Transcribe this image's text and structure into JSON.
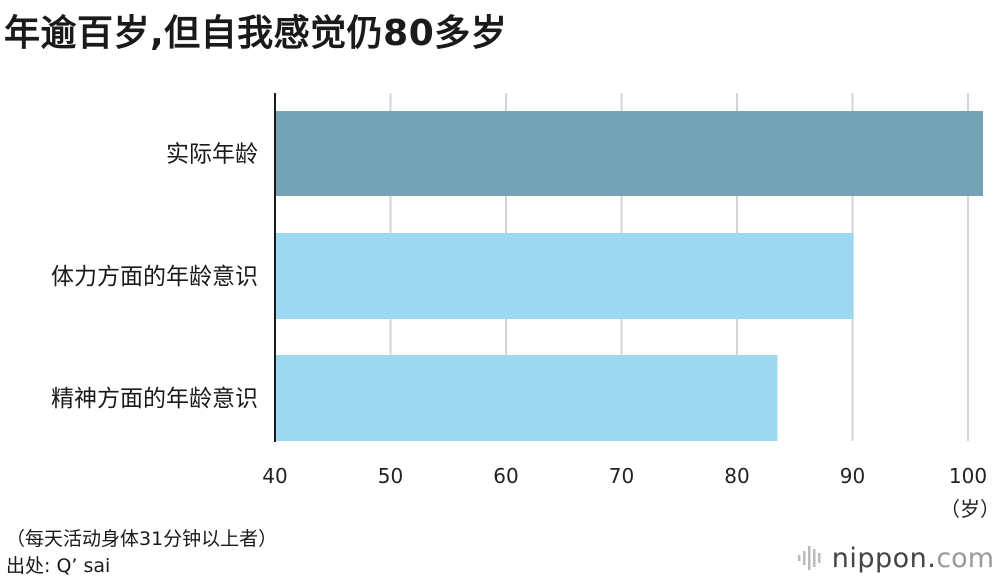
{
  "title": "年逾百岁,但自我感觉仍80多岁",
  "chart_data": {
    "type": "bar",
    "orientation": "horizontal",
    "categories": [
      "实际年龄",
      "体力方面的年龄意识",
      "精神方面的年龄意识"
    ],
    "values": [
      101.3,
      90.1,
      83.5
    ],
    "colors": [
      "#74a3b5",
      "#9cd9f0",
      "#9cd9f0"
    ],
    "xlim": [
      40,
      102
    ],
    "xticks": [
      "40",
      "50",
      "60",
      "70",
      "80",
      "90",
      "100"
    ],
    "xunit": "（岁）",
    "grid": true
  },
  "footnote": "（每天活动身体31分钟以上者）",
  "source": "出处: Q’ sai",
  "brand": {
    "name": "nippon.",
    "tld": "com",
    "icon": "sound-wave-logo-icon"
  }
}
